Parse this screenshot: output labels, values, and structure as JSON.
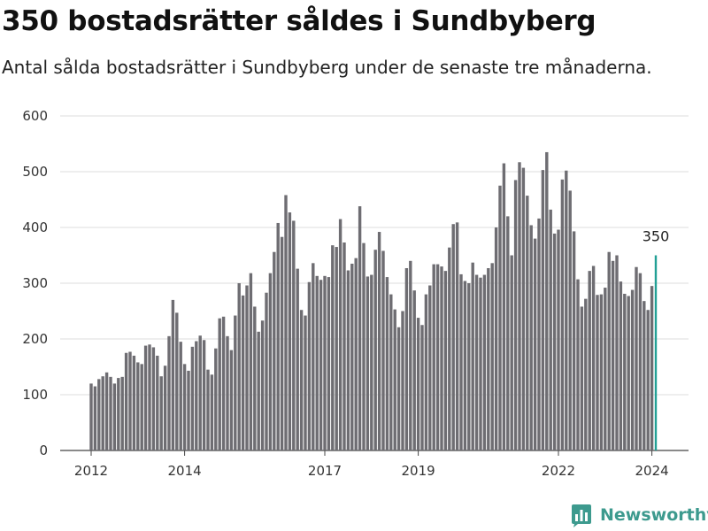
{
  "header": {
    "title": "350 bostadsrätter såldes i Sundbyberg",
    "subtitle": "Antal sålda bostadsrätter i Sundbyberg under de senaste tre månaderna."
  },
  "brand": {
    "name": "Newsworthy"
  },
  "colors": {
    "bar": "#6e6d72",
    "highlight": "#22a095",
    "grid": "#dddddd",
    "brand": "#3d9a8e"
  },
  "chart_data": {
    "type": "bar",
    "title": "350 bostadsrätter såldes i Sundbyberg",
    "subtitle": "Antal sålda bostadsrätter i Sundbyberg under de senaste tre månaderna.",
    "xlabel": "",
    "ylabel": "",
    "ylim": [
      0,
      600
    ],
    "y_ticks": [
      0,
      100,
      200,
      300,
      400,
      500,
      600
    ],
    "x_tick_labels": [
      {
        "label": "2012",
        "at": "2012-01"
      },
      {
        "label": "2014",
        "at": "2014-01"
      },
      {
        "label": "2017",
        "at": "2017-01"
      },
      {
        "label": "2019",
        "at": "2019-01"
      },
      {
        "label": "2022",
        "at": "2022-01"
      },
      {
        "label": "2024",
        "at": "2024-01"
      }
    ],
    "grid": true,
    "start_month": "2012-01",
    "series": [
      {
        "values": [
          120,
          115,
          128,
          133,
          140,
          132,
          120,
          130,
          132,
          175,
          177,
          170,
          158,
          155,
          188,
          190,
          185,
          170,
          133,
          152,
          205,
          270,
          247,
          195,
          155,
          143,
          186,
          196,
          206,
          198,
          145,
          136,
          183,
          237,
          240,
          205,
          180,
          242,
          300,
          278,
          296,
          318,
          258,
          213,
          233,
          283,
          318,
          356,
          408,
          383,
          458,
          427,
          412,
          326,
          252,
          242,
          302,
          336,
          313,
          306,
          313,
          311,
          368,
          365,
          415,
          373,
          323,
          335,
          345,
          438,
          372,
          312,
          315,
          360,
          392,
          358,
          311,
          280,
          253,
          221,
          250,
          327,
          340,
          287,
          238,
          225,
          280,
          296,
          334,
          334,
          330,
          322,
          364,
          406,
          409,
          316,
          304,
          300,
          337,
          315,
          310,
          315,
          327,
          336,
          400,
          475,
          515,
          420,
          350,
          485,
          517,
          507,
          457,
          404,
          380,
          416,
          503,
          535,
          432,
          389,
          396,
          486,
          502,
          466,
          393,
          307,
          258,
          272,
          322,
          331,
          279,
          280,
          292,
          356,
          340,
          350,
          303,
          281,
          277,
          288,
          329,
          318,
          268,
          252,
          295,
          350
        ]
      }
    ],
    "highlight": {
      "index": 145,
      "value": 350,
      "label": "350"
    }
  }
}
